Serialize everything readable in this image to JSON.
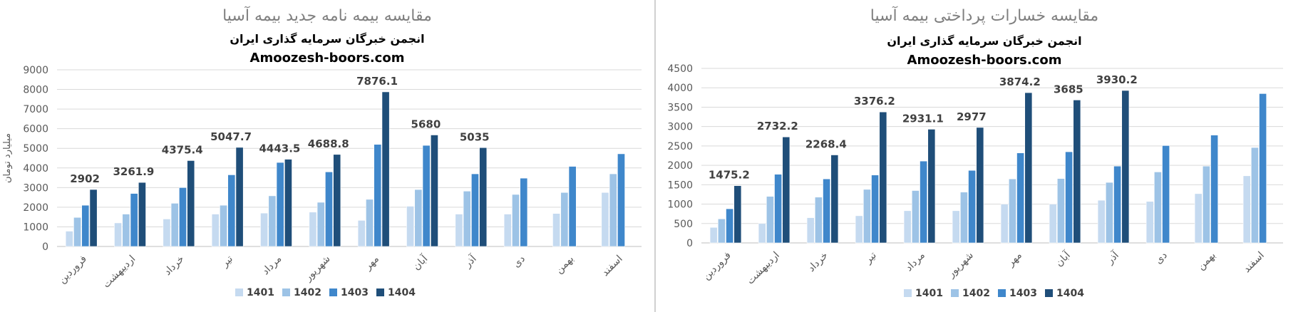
{
  "chart_data": [
    {
      "type": "bar",
      "title": "مقایسه بیمه نامه جدید بیمه آسیا",
      "subtitle": "انجمن خبرگان سرمایه گذاری ایران",
      "watermark": "Amoozesh-boors.com",
      "ylabel": "میلیارد تومان",
      "xlabel": "",
      "ylim": [
        0,
        9000
      ],
      "yticks": [
        0,
        1000,
        2000,
        3000,
        4000,
        5000,
        6000,
        7000,
        8000,
        9000
      ],
      "grid": true,
      "legend_position": "bottom",
      "categories": [
        "فروردین",
        "اردیبهشت",
        "خرداد",
        "تیر",
        "مرداد",
        "شهریور",
        "مهر",
        "آبان",
        "آذر",
        "دی",
        "بهمن",
        "اسفند"
      ],
      "series": [
        {
          "name": "1401",
          "color": "#c5daf0",
          "values": [
            780,
            1200,
            1400,
            1650,
            1700,
            1750,
            1330,
            2050,
            1650,
            1650,
            1680,
            2750
          ]
        },
        {
          "name": "1402",
          "color": "#9dc3e6",
          "values": [
            1480,
            1650,
            2200,
            2100,
            2580,
            2250,
            2400,
            2900,
            2820,
            2650,
            2750,
            3700
          ]
        },
        {
          "name": "1403",
          "color": "#3f87cb",
          "values": [
            2100,
            2700,
            3000,
            3650,
            4280,
            3800,
            5200,
            5150,
            3700,
            3480,
            4080,
            4720
          ]
        },
        {
          "name": "1404",
          "color": "#1f4e79",
          "values": [
            2902,
            3261.9,
            4375.4,
            5047.7,
            4443.5,
            4688.8,
            7876.1,
            5680,
            5035,
            null,
            null,
            null
          ]
        }
      ],
      "data_labels": [
        "2902",
        "3261.9",
        "4375.4",
        "5047.7",
        "4443.5",
        "4688.8",
        "7876.1",
        "5680",
        "5035"
      ]
    },
    {
      "type": "bar",
      "title": "مقایسه خسارات پرداختی بیمه آسیا",
      "subtitle": "انجمن خبرگان سرمایه گذاری ایران",
      "watermark": "Amoozesh-boors.com",
      "ylabel": "",
      "xlabel": "",
      "ylim": [
        0,
        4500
      ],
      "yticks": [
        0,
        500,
        1000,
        1500,
        2000,
        2500,
        3000,
        3500,
        4000,
        4500
      ],
      "grid": true,
      "legend_position": "bottom",
      "categories": [
        "فروردین",
        "اردیبهشت",
        "خرداد",
        "تیر",
        "مرداد",
        "شهریور",
        "مهر",
        "آبان",
        "آذر",
        "دی",
        "بهمن",
        "اسفند"
      ],
      "series": [
        {
          "name": "1401",
          "color": "#c5daf0",
          "values": [
            400,
            500,
            650,
            700,
            830,
            830,
            1000,
            1000,
            1100,
            1070,
            1270,
            1730
          ]
        },
        {
          "name": "1402",
          "color": "#9dc3e6",
          "values": [
            620,
            1200,
            1180,
            1380,
            1350,
            1310,
            1650,
            1660,
            1560,
            1830,
            1980,
            2460
          ]
        },
        {
          "name": "1403",
          "color": "#3f87cb",
          "values": [
            880,
            1770,
            1650,
            1750,
            2110,
            1870,
            2320,
            2350,
            1980,
            2510,
            2780,
            3850
          ]
        },
        {
          "name": "1404",
          "color": "#1f4e79",
          "values": [
            1475.2,
            2732.2,
            2268.4,
            3376.2,
            2931.1,
            2977,
            3874.2,
            3685,
            3930.2,
            null,
            null,
            null
          ]
        }
      ],
      "data_labels": [
        "1475.2",
        "2732.2",
        "2268.4",
        "3376.2",
        "2931.1",
        "2977",
        "3874.2",
        "3685",
        "3930.2"
      ]
    }
  ]
}
